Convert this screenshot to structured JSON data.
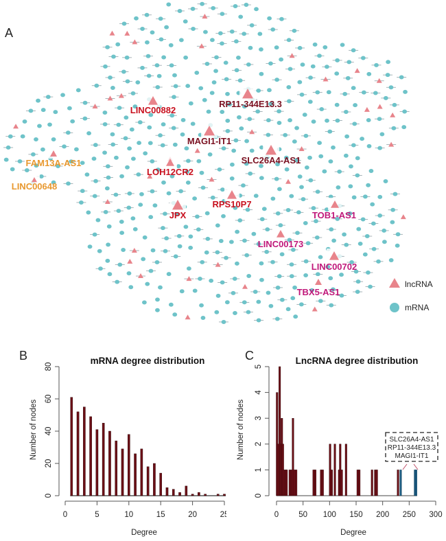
{
  "panels": {
    "A": "A",
    "B": "B",
    "C": "C"
  },
  "network": {
    "legend": [
      {
        "label": "lncRNA",
        "shape": "triangle",
        "color": "#e8848b"
      },
      {
        "label": "mRNA",
        "shape": "circle",
        "color": "#6ec3c9"
      }
    ],
    "colors": {
      "mrna": "#6ec3c9",
      "lncrna": "#e8848b",
      "edge": "#2b4a55",
      "label_orange": "#e8982e",
      "label_red": "#c8101e",
      "label_darkred": "#7a1020",
      "label_magenta": "#c0187a"
    },
    "labeled_lncrnas": [
      {
        "name": "LINC00882",
        "color_group": "label_red"
      },
      {
        "name": "RP11-344E13.3",
        "color_group": "label_darkred"
      },
      {
        "name": "MAGI1-IT1",
        "color_group": "label_darkred"
      },
      {
        "name": "SLC26A4-AS1",
        "color_group": "label_darkred"
      },
      {
        "name": "FAM13A-AS1",
        "color_group": "label_orange"
      },
      {
        "name": "LINC00648",
        "color_group": "label_orange"
      },
      {
        "name": "LOH12CR2",
        "color_group": "label_red"
      },
      {
        "name": "JPX",
        "color_group": "label_red"
      },
      {
        "name": "RPS10P7",
        "color_group": "label_red"
      },
      {
        "name": "TOB1-AS1",
        "color_group": "label_magenta"
      },
      {
        "name": "LINC00173",
        "color_group": "label_magenta"
      },
      {
        "name": "LINC00702",
        "color_group": "label_magenta"
      },
      {
        "name": "TBX5-AS1",
        "color_group": "label_magenta"
      }
    ]
  },
  "chart_data": [
    {
      "id": "B",
      "type": "bar",
      "title": "mRNA degree distribution",
      "xlabel": "Degree",
      "ylabel": "Number of nodes",
      "x": [
        1,
        2,
        3,
        4,
        5,
        6,
        7,
        8,
        9,
        10,
        11,
        12,
        13,
        14,
        15,
        16,
        17,
        18,
        19,
        20,
        21,
        22,
        23,
        24,
        25
      ],
      "values": [
        61,
        52,
        55,
        49,
        41,
        45,
        40,
        34,
        29,
        38,
        26,
        29,
        18,
        20,
        14,
        5,
        4,
        2,
        6,
        1,
        2,
        1,
        0,
        1,
        1
      ],
      "xlim": [
        0,
        25
      ],
      "ylim": [
        0,
        80
      ],
      "xticks": [
        0,
        5,
        10,
        15,
        20,
        25
      ],
      "yticks": [
        0,
        20,
        40,
        60,
        80
      ],
      "bar_color": "#6b0f16",
      "grid": false
    },
    {
      "id": "C",
      "type": "bar",
      "title": "LncRNA degree distribution",
      "xlabel": "Degree",
      "ylabel": "Number of nodes",
      "bars": [
        {
          "x": 1,
          "count": 4
        },
        {
          "x": 3,
          "count": 2
        },
        {
          "x": 6,
          "count": 5
        },
        {
          "x": 8,
          "count": 2
        },
        {
          "x": 10,
          "count": 3
        },
        {
          "x": 12,
          "count": 2
        },
        {
          "x": 14,
          "count": 1
        },
        {
          "x": 17,
          "count": 1
        },
        {
          "x": 19,
          "count": 1
        },
        {
          "x": 25,
          "count": 1
        },
        {
          "x": 28,
          "count": 1
        },
        {
          "x": 31,
          "count": 3
        },
        {
          "x": 34,
          "count": 1
        },
        {
          "x": 37,
          "count": 1
        },
        {
          "x": 70,
          "count": 1
        },
        {
          "x": 73,
          "count": 1
        },
        {
          "x": 84,
          "count": 1
        },
        {
          "x": 87,
          "count": 1
        },
        {
          "x": 101,
          "count": 2
        },
        {
          "x": 104,
          "count": 1
        },
        {
          "x": 110,
          "count": 2
        },
        {
          "x": 118,
          "count": 1
        },
        {
          "x": 120,
          "count": 2
        },
        {
          "x": 123,
          "count": 1
        },
        {
          "x": 131,
          "count": 2
        },
        {
          "x": 153,
          "count": 1
        },
        {
          "x": 156,
          "count": 1
        },
        {
          "x": 180,
          "count": 1
        },
        {
          "x": 186,
          "count": 1
        },
        {
          "x": 189,
          "count": 1
        },
        {
          "x": 229,
          "count": 1
        },
        {
          "x": 234,
          "count": 1,
          "highlight": true
        },
        {
          "x": 261,
          "count": 1,
          "highlight": true
        },
        {
          "x": 263,
          "count": 1,
          "highlight": true
        }
      ],
      "xlim": [
        0,
        300
      ],
      "ylim": [
        0,
        5
      ],
      "xticks": [
        0,
        50,
        100,
        150,
        200,
        250,
        300
      ],
      "yticks": [
        0,
        1,
        2,
        3,
        4,
        5
      ],
      "bar_color": "#6b0f16",
      "highlight_color": "#1a5a80",
      "annotation": {
        "lines": [
          "SLC26A4-AS1",
          "RP11-344E13.3",
          "MAGI1-IT1"
        ]
      },
      "grid": false
    }
  ]
}
